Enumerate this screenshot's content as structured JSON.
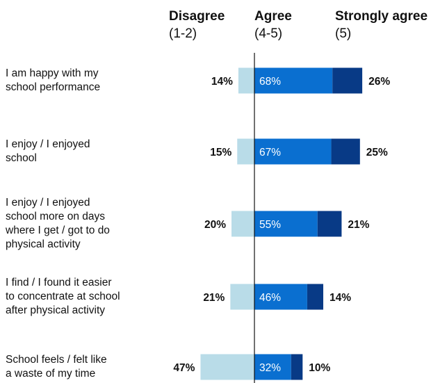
{
  "chart_data": {
    "type": "bar",
    "headers": [
      {
        "title": "Disagree",
        "sub": "(1-2)"
      },
      {
        "title": "Agree",
        "sub": "(4-5)"
      },
      {
        "title": "Strongly agree",
        "sub": "(5)"
      }
    ],
    "categories": [
      "I am happy with my school performance",
      "I enjoy / I enjoyed school",
      "I enjoy / I enjoyed school more on days where I get / got to do physical activity",
      "I find / I found it easier to concentrate at school after physical activity",
      "School feels / felt like a waste of my time"
    ],
    "category_lines": [
      [
        "I am happy with my",
        "school performance"
      ],
      [
        "I enjoy / I enjoyed",
        "school"
      ],
      [
        "I enjoy / I enjoyed",
        "school more on days",
        "where I get / got to do",
        "physical activity"
      ],
      [
        "I find / I found it easier",
        "to concentrate at school",
        "after physical activity"
      ],
      [
        "School feels / felt like",
        "a waste of my time"
      ]
    ],
    "series": [
      {
        "name": "Disagree",
        "values": [
          14,
          15,
          20,
          21,
          47
        ],
        "color": "#b9dce8"
      },
      {
        "name": "Agree",
        "values": [
          68,
          67,
          55,
          46,
          32
        ],
        "color": "#0a6fd0"
      },
      {
        "name": "Strongly agree",
        "values": [
          26,
          25,
          21,
          14,
          10
        ],
        "color": "#083a86"
      }
    ],
    "value_suffix": "%"
  }
}
